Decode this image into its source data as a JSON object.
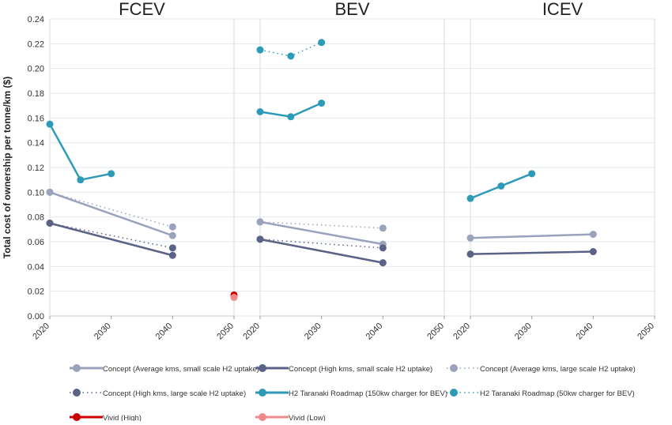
{
  "chart_data": {
    "type": "line",
    "ylabel": "Total cost of ownership per tonne/km ($)",
    "ylim": [
      0,
      0.24
    ],
    "yticks": [
      "0.00",
      "0.02",
      "0.04",
      "0.06",
      "0.08",
      "0.10",
      "0.12",
      "0.14",
      "0.16",
      "0.18",
      "0.20",
      "0.22",
      "0.24"
    ],
    "xlim": [
      2020,
      2050
    ],
    "xticks": [
      "2020",
      "2030",
      "2040",
      "2050"
    ],
    "grid": true,
    "legend_position": "bottom",
    "panels": [
      {
        "title": "FCEV",
        "series": [
          {
            "key": "concept_avg_small",
            "points": [
              [
                2020,
                0.1
              ],
              [
                2040,
                0.065
              ]
            ]
          },
          {
            "key": "concept_high_small",
            "points": [
              [
                2020,
                0.075
              ],
              [
                2040,
                0.049
              ]
            ]
          },
          {
            "key": "concept_avg_large",
            "points": [
              [
                2020,
                0.1
              ],
              [
                2040,
                0.072
              ]
            ]
          },
          {
            "key": "concept_high_large",
            "points": [
              [
                2020,
                0.075
              ],
              [
                2040,
                0.055
              ]
            ]
          },
          {
            "key": "h2_150",
            "points": [
              [
                2020,
                0.155
              ],
              [
                2025,
                0.11
              ],
              [
                2030,
                0.115
              ]
            ]
          },
          {
            "key": "vivid_high",
            "points": [
              [
                2050,
                0.017
              ]
            ]
          },
          {
            "key": "vivid_low",
            "points": [
              [
                2050,
                0.015
              ]
            ]
          }
        ]
      },
      {
        "title": "BEV",
        "series": [
          {
            "key": "concept_avg_small",
            "points": [
              [
                2020,
                0.076
              ],
              [
                2040,
                0.058
              ]
            ]
          },
          {
            "key": "concept_high_small",
            "points": [
              [
                2020,
                0.062
              ],
              [
                2040,
                0.043
              ]
            ]
          },
          {
            "key": "concept_avg_large",
            "points": [
              [
                2020,
                0.076
              ],
              [
                2040,
                0.071
              ]
            ]
          },
          {
            "key": "concept_high_large",
            "points": [
              [
                2020,
                0.062
              ],
              [
                2040,
                0.055
              ]
            ]
          },
          {
            "key": "h2_150",
            "points": [
              [
                2020,
                0.165
              ],
              [
                2025,
                0.161
              ],
              [
                2030,
                0.172
              ]
            ]
          },
          {
            "key": "h2_50",
            "points": [
              [
                2020,
                0.215
              ],
              [
                2025,
                0.21
              ],
              [
                2030,
                0.221
              ]
            ]
          }
        ]
      },
      {
        "title": "ICEV",
        "series": [
          {
            "key": "concept_avg_small",
            "points": [
              [
                2020,
                0.063
              ],
              [
                2040,
                0.066
              ]
            ]
          },
          {
            "key": "concept_high_small",
            "points": [
              [
                2020,
                0.05
              ],
              [
                2040,
                0.052
              ]
            ]
          },
          {
            "key": "h2_150",
            "points": [
              [
                2020,
                0.095
              ],
              [
                2025,
                0.105
              ],
              [
                2030,
                0.115
              ]
            ]
          }
        ]
      }
    ],
    "series_styles": {
      "concept_avg_small": {
        "name": "Concept (Average kms, small scale H2 uptake)",
        "color": "#9aa2bc",
        "style": "solid"
      },
      "concept_high_small": {
        "name": "Concept (High kms, small scale H2 uptake)",
        "color": "#5a6285",
        "style": "solid"
      },
      "concept_avg_large": {
        "name": "Concept (Average kms, large scale H2 uptake)",
        "color": "#9aa2bc",
        "style": "dotted"
      },
      "concept_high_large": {
        "name": "Concept (High kms, large scale H2 uptake)",
        "color": "#5a6285",
        "style": "dotted"
      },
      "h2_150": {
        "name": "H2 Taranaki Roadmap (150kw charger for BEV)",
        "color": "#2d9bb8",
        "style": "solid"
      },
      "h2_50": {
        "name": "H2 Taranaki Roadmap (50kw charger for BEV)",
        "color": "#2d9bb8",
        "style": "dotted"
      },
      "vivid_high": {
        "name": "Vivid (High)",
        "color": "#cc0000",
        "style": "solid"
      },
      "vivid_low": {
        "name": "Vivid (Low)",
        "color": "#f08a8a",
        "style": "solid"
      }
    },
    "legend": [
      "concept_avg_small",
      "concept_high_small",
      "concept_avg_large",
      "concept_high_large",
      "h2_150",
      "h2_50",
      "vivid_high",
      "vivid_low"
    ]
  }
}
